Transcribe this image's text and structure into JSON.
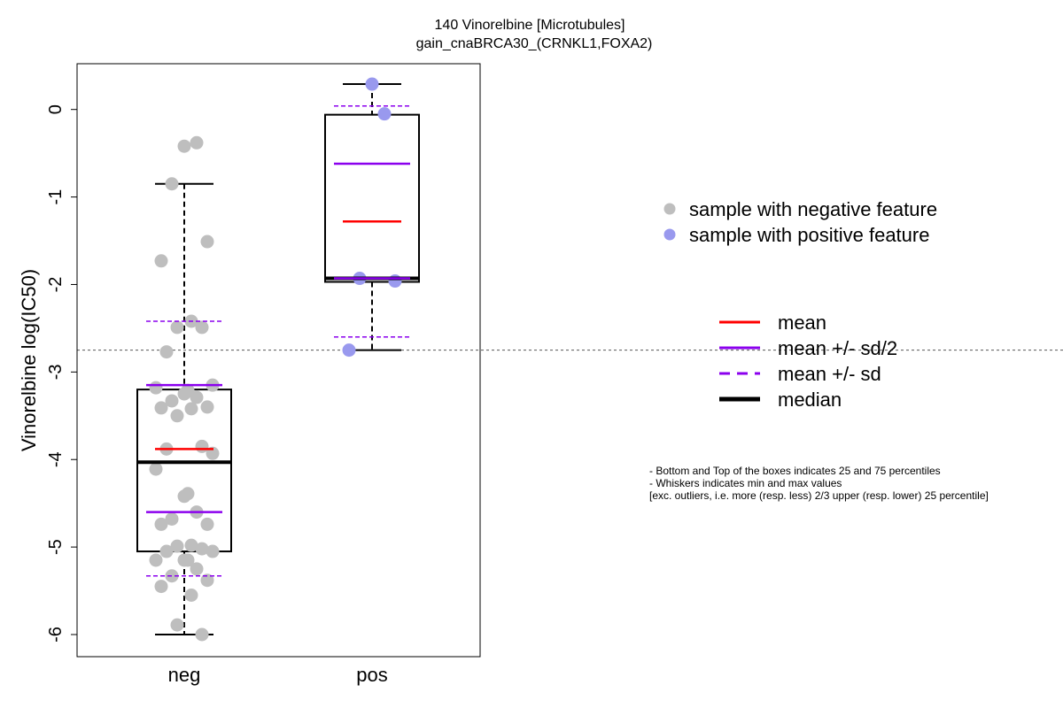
{
  "chart_data": {
    "type": "box",
    "title": "140 Vinorelbine [Microtubules]",
    "subtitle": "gain_cnaBRCA30_(CRNKL1,FOXA2)",
    "ylabel": "Vinorelbine log(IC50)",
    "xlabel": "",
    "ylim": [
      -6.1,
      0.45
    ],
    "yticks": [
      0,
      -1,
      -2,
      -3,
      -4,
      -5,
      -6
    ],
    "categories": [
      "neg",
      "pos"
    ],
    "reference_line": -2.75,
    "colors": {
      "neg": "#bebebe",
      "pos": "#9999ee",
      "mean": "#ff0000",
      "sd": "#8b00ee",
      "median": "#000000"
    },
    "groups": [
      {
        "name": "neg",
        "q1": -5.05,
        "median": -4.03,
        "q3": -3.2,
        "whisker_low": -6.0,
        "whisker_high": -0.85,
        "mean": -3.88,
        "mean_minus_half_sd": -4.6,
        "mean_plus_half_sd": -3.15,
        "mean_minus_sd": -5.33,
        "mean_plus_sd": -2.42,
        "points": [
          -0.42,
          -0.38,
          -0.85,
          -1.51,
          -1.73,
          -2.42,
          -2.49,
          -2.49,
          -2.77,
          -3.15,
          -3.18,
          -3.21,
          -3.25,
          -3.29,
          -3.33,
          -3.4,
          -3.41,
          -3.42,
          -3.5,
          -3.85,
          -3.88,
          -3.93,
          -4.11,
          -4.39,
          -4.42,
          -4.6,
          -4.68,
          -4.74,
          -4.74,
          -4.98,
          -4.99,
          -5.02,
          -5.05,
          -5.05,
          -5.15,
          -5.15,
          -5.15,
          -5.25,
          -5.33,
          -5.38,
          -5.45,
          -5.55,
          -5.89,
          -6.0
        ]
      },
      {
        "name": "pos",
        "q1": -1.97,
        "median": -1.93,
        "q3": -0.06,
        "whisker_low": -2.75,
        "whisker_high": 0.29,
        "mean": -1.28,
        "mean_minus_half_sd": -1.93,
        "mean_plus_half_sd": -0.62,
        "mean_minus_sd": -2.6,
        "mean_plus_sd": 0.04,
        "points": [
          0.29,
          -0.05,
          -1.93,
          -1.96,
          -2.75
        ]
      }
    ],
    "legend_points": [
      {
        "label": "sample with negative feature",
        "color": "#bebebe"
      },
      {
        "label": "sample with positive feature",
        "color": "#9999ee"
      }
    ],
    "legend_lines": [
      {
        "label": "mean",
        "color": "#ff0000",
        "style": "solid"
      },
      {
        "label": "mean +/- sd/2",
        "color": "#8b00ee",
        "style": "solid"
      },
      {
        "label": "mean +/- sd",
        "color": "#8b00ee",
        "style": "dashed"
      },
      {
        "label": "median",
        "color": "#000000",
        "style": "bold"
      }
    ],
    "notes": [
      "- Bottom and Top of the boxes indicates 25 and 75 percentiles",
      "- Whiskers indicates min and max values",
      "[exc. outliers, i.e. more (resp. less) 2/3 upper (resp. lower) 25 percentile]"
    ]
  }
}
